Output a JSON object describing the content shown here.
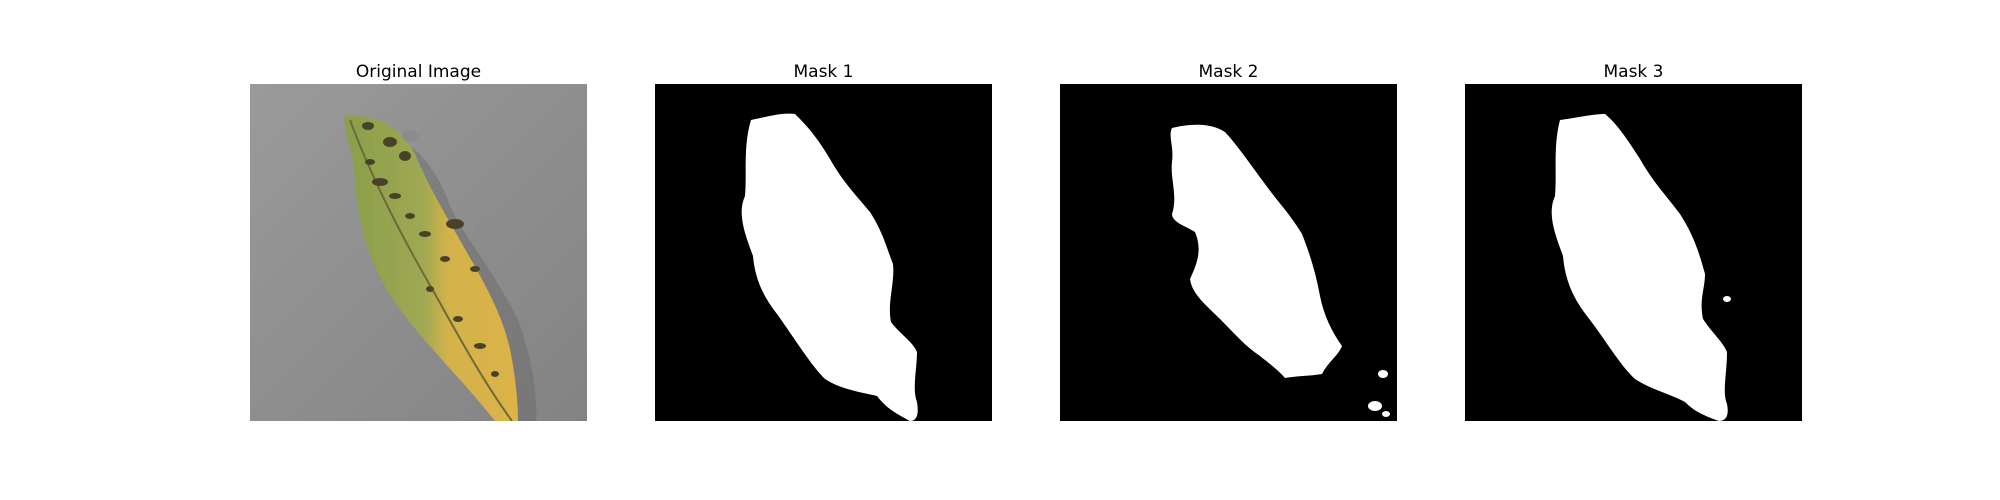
{
  "panels": [
    {
      "title": "Original Image",
      "kind": "photo",
      "icon": "leaf-photo"
    },
    {
      "title": "Mask 1",
      "kind": "mask",
      "icon": "leaf-mask"
    },
    {
      "title": "Mask 2",
      "kind": "mask",
      "icon": "leaf-mask"
    },
    {
      "title": "Mask 3",
      "kind": "mask",
      "icon": "leaf-mask"
    }
  ],
  "colors": {
    "photo_background": "#8e8e8e",
    "leaf_green": "#8ea04e",
    "leaf_yellow": "#d8b347",
    "spot_dark": "#4a4228",
    "mask_background": "#000000",
    "mask_foreground": "#ffffff"
  }
}
